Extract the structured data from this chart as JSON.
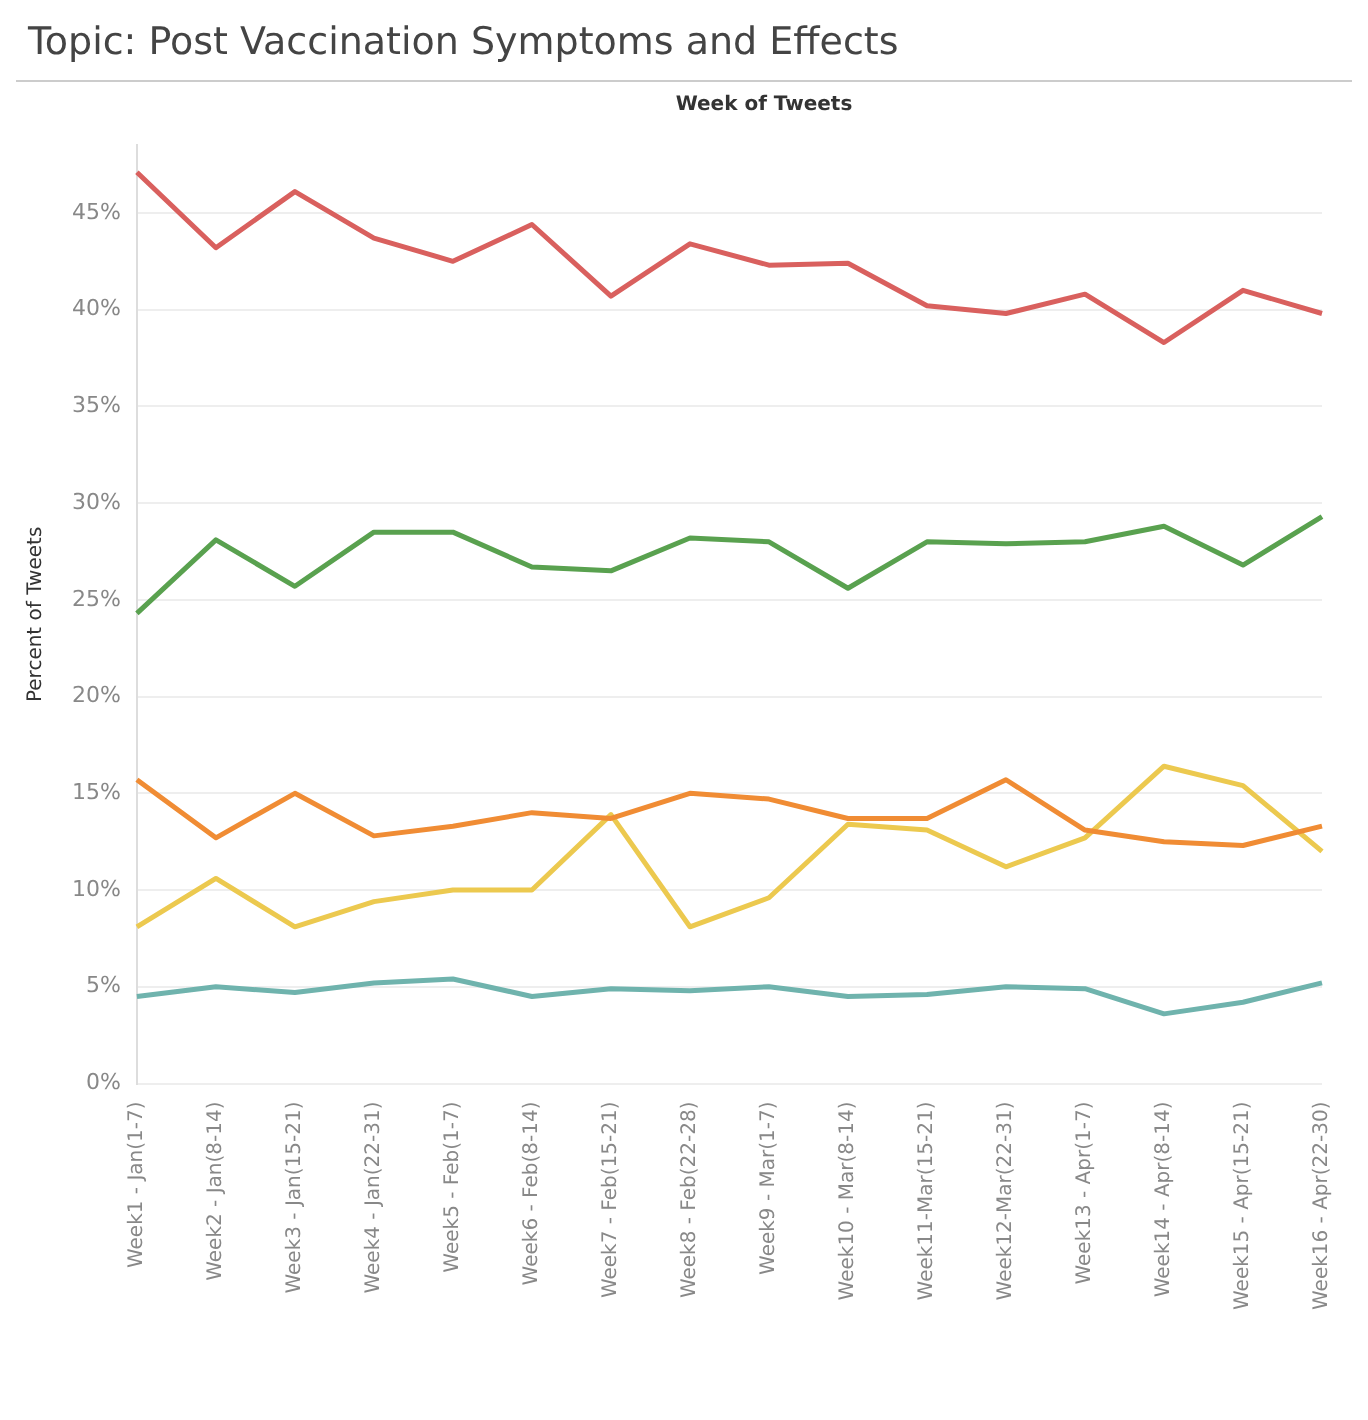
{
  "chart_data": {
    "type": "line",
    "title": "Topic: Post Vaccination Symptoms and Effects",
    "xlabel": "Week of Tweets",
    "ylabel": "Percent of Tweets",
    "categories": [
      "Week1 - Jan(1-7)",
      "Week2 - Jan(8-14)",
      "Week3 - Jan(15-21)",
      "Week4 - Jan(22-31)",
      "Week5 - Feb(1-7)",
      "Week6 - Feb(8-14)",
      "Week7 - Feb(15-21)",
      "Week8 - Feb(22-28)",
      "Week9 - Mar(1-7)",
      "Week10 - Mar(8-14)",
      "Week11-Mar(15-21)",
      "Week12-Mar(22-31)",
      "Week13 - Apr(1-7)",
      "Week14 - Apr(8-14)",
      "Week15 - Apr(15-21)",
      "Week16 - Apr(22-30)"
    ],
    "series": [
      {
        "color": "#d9605e",
        "values": [
          47.1,
          43.2,
          46.1,
          43.7,
          42.5,
          44.4,
          40.7,
          43.4,
          42.3,
          42.4,
          40.2,
          39.8,
          40.8,
          38.3,
          41.0,
          39.8
        ]
      },
      {
        "color": "#59a14f",
        "values": [
          24.3,
          28.1,
          25.7,
          28.5,
          28.5,
          26.7,
          26.5,
          28.2,
          28.0,
          25.6,
          28.0,
          27.9,
          28.0,
          28.8,
          26.8,
          29.3
        ]
      },
      {
        "color": "#f08c34",
        "values": [
          15.7,
          12.7,
          15.0,
          12.8,
          13.3,
          14.0,
          13.7,
          15.0,
          14.7,
          13.7,
          13.7,
          15.7,
          13.1,
          12.5,
          12.3,
          13.3
        ]
      },
      {
        "color": "#ecc94f",
        "values": [
          8.1,
          10.6,
          8.1,
          9.4,
          10.0,
          10.0,
          13.9,
          8.1,
          9.6,
          13.4,
          13.1,
          11.2,
          12.7,
          16.4,
          15.4,
          12.0
        ]
      },
      {
        "color": "#6fb3ad",
        "values": [
          4.5,
          5.0,
          4.7,
          5.2,
          5.4,
          4.5,
          4.9,
          4.8,
          5.0,
          4.5,
          4.6,
          5.0,
          4.9,
          3.6,
          4.2,
          5.2
        ]
      }
    ],
    "ylim": [
      0,
      48.5
    ],
    "yticks": [
      {
        "value": 0,
        "label": "0%"
      },
      {
        "value": 5,
        "label": "5%"
      },
      {
        "value": 10,
        "label": "10%"
      },
      {
        "value": 15,
        "label": "15%"
      },
      {
        "value": 20,
        "label": "20%"
      },
      {
        "value": 25,
        "label": "25%"
      },
      {
        "value": 30,
        "label": "30%"
      },
      {
        "value": 35,
        "label": "35%"
      },
      {
        "value": 40,
        "label": "40%"
      },
      {
        "value": 45,
        "label": "45%"
      }
    ],
    "grid": "y",
    "marker": "none",
    "line_style": "solid"
  }
}
